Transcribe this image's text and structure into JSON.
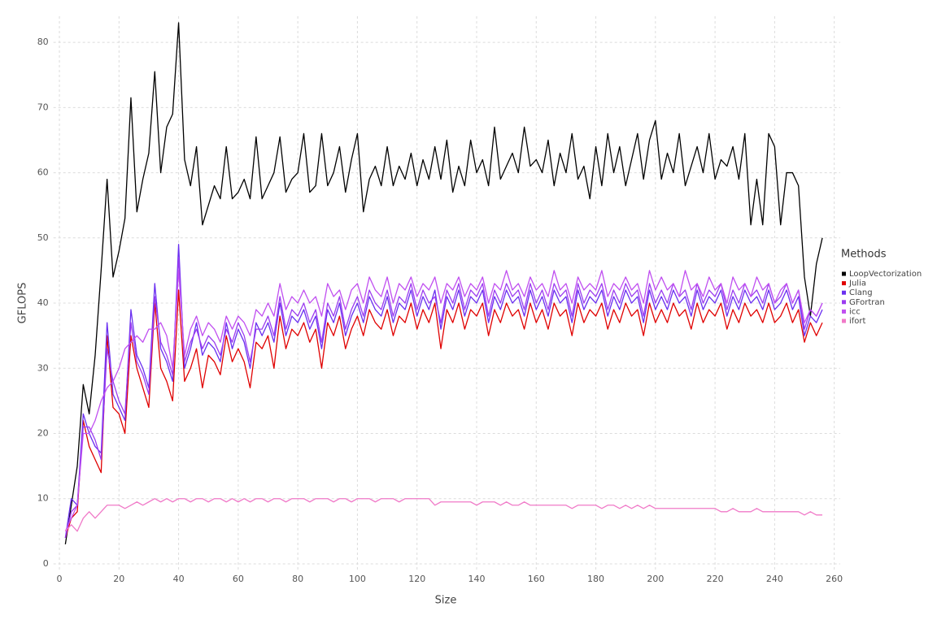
{
  "chart_data": {
    "type": "line",
    "x_label": "Size",
    "y_label": "GFLOPS",
    "legend_title": "Methods",
    "legend": "right",
    "grid": true,
    "xlim": [
      -2,
      262
    ],
    "ylim": [
      -1,
      84
    ],
    "xticks": [
      0,
      20,
      40,
      60,
      80,
      100,
      120,
      140,
      160,
      180,
      200,
      220,
      240,
      260
    ],
    "yticks": [
      0,
      10,
      20,
      30,
      40,
      50,
      60,
      70,
      80
    ],
    "x": [
      2,
      4,
      6,
      8,
      10,
      12,
      14,
      16,
      18,
      20,
      22,
      24,
      26,
      28,
      30,
      32,
      34,
      36,
      38,
      40,
      42,
      44,
      46,
      48,
      50,
      52,
      54,
      56,
      58,
      60,
      62,
      64,
      66,
      68,
      70,
      72,
      74,
      76,
      78,
      80,
      82,
      84,
      86,
      88,
      90,
      92,
      94,
      96,
      98,
      100,
      102,
      104,
      106,
      108,
      110,
      112,
      114,
      116,
      118,
      120,
      122,
      124,
      126,
      128,
      130,
      132,
      134,
      136,
      138,
      140,
      142,
      144,
      146,
      148,
      150,
      152,
      154,
      156,
      158,
      160,
      162,
      164,
      166,
      168,
      170,
      172,
      174,
      176,
      178,
      180,
      182,
      184,
      186,
      188,
      190,
      192,
      194,
      196,
      198,
      200,
      202,
      204,
      206,
      208,
      210,
      212,
      214,
      216,
      218,
      220,
      222,
      224,
      226,
      228,
      230,
      232,
      234,
      236,
      238,
      240,
      242,
      244,
      246,
      248,
      250,
      252,
      254,
      256
    ],
    "series": [
      {
        "name": "LoopVectorization",
        "color": "#000000",
        "values": [
          3,
          9,
          15,
          27.5,
          23,
          32,
          45,
          59,
          44,
          48,
          53,
          71.5,
          54,
          59,
          63,
          75.5,
          60,
          67,
          69,
          83,
          62,
          58,
          64,
          52,
          55,
          58,
          56,
          64,
          56,
          57,
          59,
          56,
          65.5,
          56,
          58,
          60,
          65.5,
          57,
          59,
          60,
          66,
          57,
          58,
          66,
          58,
          60,
          64,
          57,
          62,
          66,
          54,
          59,
          61,
          58,
          64,
          58,
          61,
          59,
          63,
          58,
          62,
          59,
          64,
          59,
          65,
          57,
          61,
          58,
          65,
          60,
          62,
          58,
          67,
          59,
          61,
          63,
          60,
          67,
          61,
          62,
          60,
          65,
          58,
          63,
          60,
          66,
          59,
          61,
          56,
          64,
          58,
          66,
          60,
          64,
          58,
          62,
          66,
          59,
          65,
          68,
          59,
          63,
          60,
          66,
          58,
          61,
          64,
          60,
          66,
          59,
          62,
          61,
          64,
          59,
          66,
          52,
          59,
          52,
          66,
          64,
          52,
          60,
          60,
          58,
          44,
          38,
          46,
          50
        ]
      },
      {
        "name": "Julia",
        "color": "#e00000",
        "values": [
          4,
          7,
          8,
          22,
          18,
          16,
          14,
          35,
          24,
          23,
          20,
          35,
          30,
          27,
          24,
          40,
          30,
          28,
          25,
          42,
          28,
          30,
          33,
          27,
          32,
          31,
          29,
          35,
          31,
          33,
          31,
          27,
          34,
          33,
          35,
          30,
          38,
          33,
          36,
          35,
          37,
          34,
          36,
          30,
          37,
          35,
          38,
          33,
          36,
          38,
          35,
          39,
          37,
          36,
          39,
          35,
          38,
          37,
          40,
          36,
          39,
          37,
          40,
          33,
          39,
          37,
          40,
          36,
          39,
          38,
          40,
          35,
          39,
          37,
          40,
          38,
          39,
          36,
          40,
          37,
          39,
          36,
          40,
          38,
          39,
          35,
          40,
          37,
          39,
          38,
          40,
          36,
          39,
          37,
          40,
          38,
          39,
          35,
          40,
          37,
          39,
          37,
          40,
          38,
          39,
          36,
          40,
          37,
          39,
          38,
          40,
          36,
          39,
          37,
          40,
          38,
          39,
          37,
          40,
          37,
          38,
          40,
          37,
          39,
          34,
          37,
          35,
          37
        ]
      },
      {
        "name": "Clang",
        "color": "#6a2ff0",
        "values": [
          4,
          10,
          9,
          23,
          20,
          18,
          17,
          37,
          26,
          24,
          22,
          39,
          32,
          30,
          27,
          43,
          33,
          31,
          28,
          49,
          30,
          33,
          37,
          32,
          34,
          33,
          31,
          37,
          33,
          36,
          34,
          30,
          37,
          35,
          37,
          34,
          40,
          35,
          38,
          37,
          39,
          36,
          38,
          33,
          39,
          37,
          40,
          35,
          38,
          40,
          37,
          41,
          39,
          38,
          41,
          37,
          40,
          39,
          42,
          38,
          41,
          39,
          42,
          36,
          41,
          39,
          42,
          38,
          41,
          40,
          42,
          37,
          41,
          39,
          42,
          40,
          41,
          38,
          42,
          39,
          41,
          38,
          42,
          40,
          41,
          37,
          42,
          39,
          41,
          40,
          42,
          38,
          41,
          39,
          42,
          40,
          41,
          37,
          42,
          39,
          41,
          39,
          42,
          40,
          41,
          38,
          42,
          39,
          41,
          40,
          42,
          38,
          41,
          39,
          42,
          40,
          41,
          39,
          42,
          39,
          40,
          42,
          39,
          41,
          35,
          38,
          37,
          39
        ]
      },
      {
        "name": "GFortran",
        "color": "#9b3cf0",
        "values": [
          4,
          8,
          9,
          21,
          21,
          19,
          16,
          33,
          28,
          25,
          23,
          37,
          31,
          29,
          26,
          41,
          34,
          32,
          29,
          47,
          31,
          34,
          36,
          33,
          35,
          34,
          32,
          36,
          34,
          37,
          35,
          31,
          36,
          36,
          38,
          35,
          41,
          36,
          39,
          38,
          40,
          37,
          39,
          34,
          40,
          38,
          41,
          36,
          39,
          41,
          38,
          42,
          40,
          39,
          42,
          38,
          41,
          40,
          43,
          39,
          42,
          40,
          41,
          37,
          42,
          40,
          43,
          39,
          42,
          41,
          43,
          38,
          42,
          40,
          43,
          41,
          42,
          39,
          43,
          40,
          42,
          39,
          43,
          41,
          42,
          38,
          43,
          40,
          42,
          41,
          43,
          39,
          42,
          40,
          43,
          41,
          42,
          38,
          43,
          40,
          42,
          40,
          43,
          41,
          42,
          39,
          43,
          40,
          42,
          41,
          43,
          39,
          42,
          40,
          43,
          41,
          42,
          40,
          43,
          40,
          41,
          43,
          40,
          42,
          36,
          39,
          38,
          40
        ]
      },
      {
        "name": "icc",
        "color": "#c04ff0",
        "values": [
          5,
          7,
          9,
          20,
          20,
          22,
          25,
          27,
          28,
          30,
          33,
          34,
          35,
          34,
          36,
          36,
          37,
          35,
          30,
          45,
          32,
          36,
          38,
          35,
          37,
          36,
          34,
          38,
          36,
          38,
          37,
          35,
          39,
          38,
          40,
          38,
          43,
          39,
          41,
          40,
          42,
          40,
          41,
          38,
          43,
          41,
          42,
          39,
          42,
          43,
          40,
          44,
          42,
          41,
          44,
          40,
          43,
          42,
          44,
          41,
          43,
          42,
          44,
          40,
          43,
          42,
          44,
          41,
          43,
          42,
          44,
          40,
          43,
          42,
          45,
          42,
          43,
          41,
          44,
          42,
          43,
          41,
          45,
          42,
          43,
          40,
          44,
          42,
          43,
          42,
          45,
          41,
          43,
          42,
          44,
          42,
          43,
          40,
          45,
          42,
          44,
          42,
          43,
          41,
          45,
          42,
          43,
          41,
          44,
          42,
          43,
          40,
          44,
          42,
          43,
          41,
          44,
          42,
          43,
          40,
          42,
          43,
          40,
          42,
          37,
          39,
          38,
          40
        ]
      },
      {
        "name": "ifort",
        "color": "#f07ac8",
        "values": [
          5,
          6,
          5,
          7,
          8,
          7,
          8,
          9,
          9,
          9,
          8.5,
          9,
          9.5,
          9,
          9.5,
          10,
          9.5,
          10,
          9.5,
          10,
          10,
          9.5,
          10,
          10,
          9.5,
          10,
          10,
          9.5,
          10,
          9.5,
          10,
          9.5,
          10,
          10,
          9.5,
          10,
          10,
          9.5,
          10,
          10,
          10,
          9.5,
          10,
          10,
          10,
          9.5,
          10,
          10,
          9.5,
          10,
          10,
          10,
          9.5,
          10,
          10,
          10,
          9.5,
          10,
          10,
          10,
          10,
          10,
          9,
          9.5,
          9.5,
          9.5,
          9.5,
          9.5,
          9.5,
          9,
          9.5,
          9.5,
          9.5,
          9,
          9.5,
          9,
          9,
          9.5,
          9,
          9,
          9,
          9,
          9,
          9,
          9,
          8.5,
          9,
          9,
          9,
          9,
          8.5,
          9,
          9,
          8.5,
          9,
          8.5,
          9,
          8.5,
          9,
          8.5,
          8.5,
          8.5,
          8.5,
          8.5,
          8.5,
          8.5,
          8.5,
          8.5,
          8.5,
          8.5,
          8,
          8,
          8.5,
          8,
          8,
          8,
          8.5,
          8,
          8,
          8,
          8,
          8,
          8,
          8,
          7.5,
          8,
          7.5,
          7.5
        ]
      }
    ]
  }
}
